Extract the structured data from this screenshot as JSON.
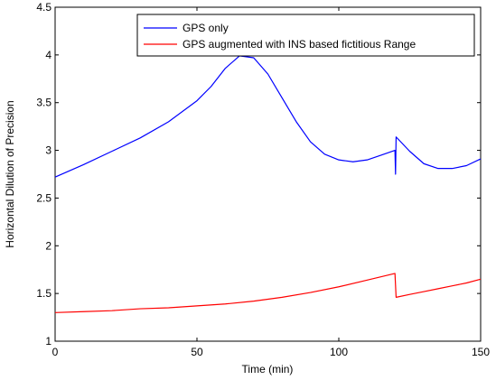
{
  "chart_data": {
    "type": "line",
    "title": "",
    "xlabel": "Time (min)",
    "ylabel": "Horizontal Dilution of Precision",
    "xlim": [
      0,
      150
    ],
    "ylim": [
      1,
      4.5
    ],
    "xticks": [
      0,
      50,
      100,
      150
    ],
    "yticks": [
      1,
      1.5,
      2,
      2.5,
      3,
      3.5,
      4,
      4.5
    ],
    "grid": false,
    "legend_position": "top-right",
    "series": [
      {
        "name": "GPS only",
        "color": "#0000ff",
        "x": [
          0,
          10,
          20,
          30,
          40,
          50,
          55,
          60,
          65,
          70,
          75,
          80,
          85,
          90,
          95,
          100,
          105,
          110,
          115,
          119.8,
          120,
          120.2,
          125,
          130,
          135,
          140,
          145,
          150
        ],
        "y": [
          2.72,
          2.85,
          2.99,
          3.13,
          3.3,
          3.52,
          3.67,
          3.86,
          3.99,
          3.97,
          3.8,
          3.55,
          3.3,
          3.09,
          2.96,
          2.9,
          2.88,
          2.9,
          2.95,
          3.0,
          2.75,
          3.14,
          2.99,
          2.86,
          2.81,
          2.81,
          2.84,
          2.91
        ]
      },
      {
        "name": "GPS augmented with INS based fictitious Range",
        "color": "#ff0000",
        "x": [
          0,
          10,
          20,
          30,
          40,
          50,
          60,
          70,
          80,
          90,
          100,
          110,
          119.8,
          120.2,
          125,
          130,
          135,
          140,
          145,
          150
        ],
        "y": [
          1.3,
          1.31,
          1.32,
          1.34,
          1.35,
          1.37,
          1.39,
          1.42,
          1.46,
          1.51,
          1.57,
          1.64,
          1.71,
          1.46,
          1.49,
          1.52,
          1.55,
          1.58,
          1.61,
          1.65
        ]
      }
    ]
  }
}
